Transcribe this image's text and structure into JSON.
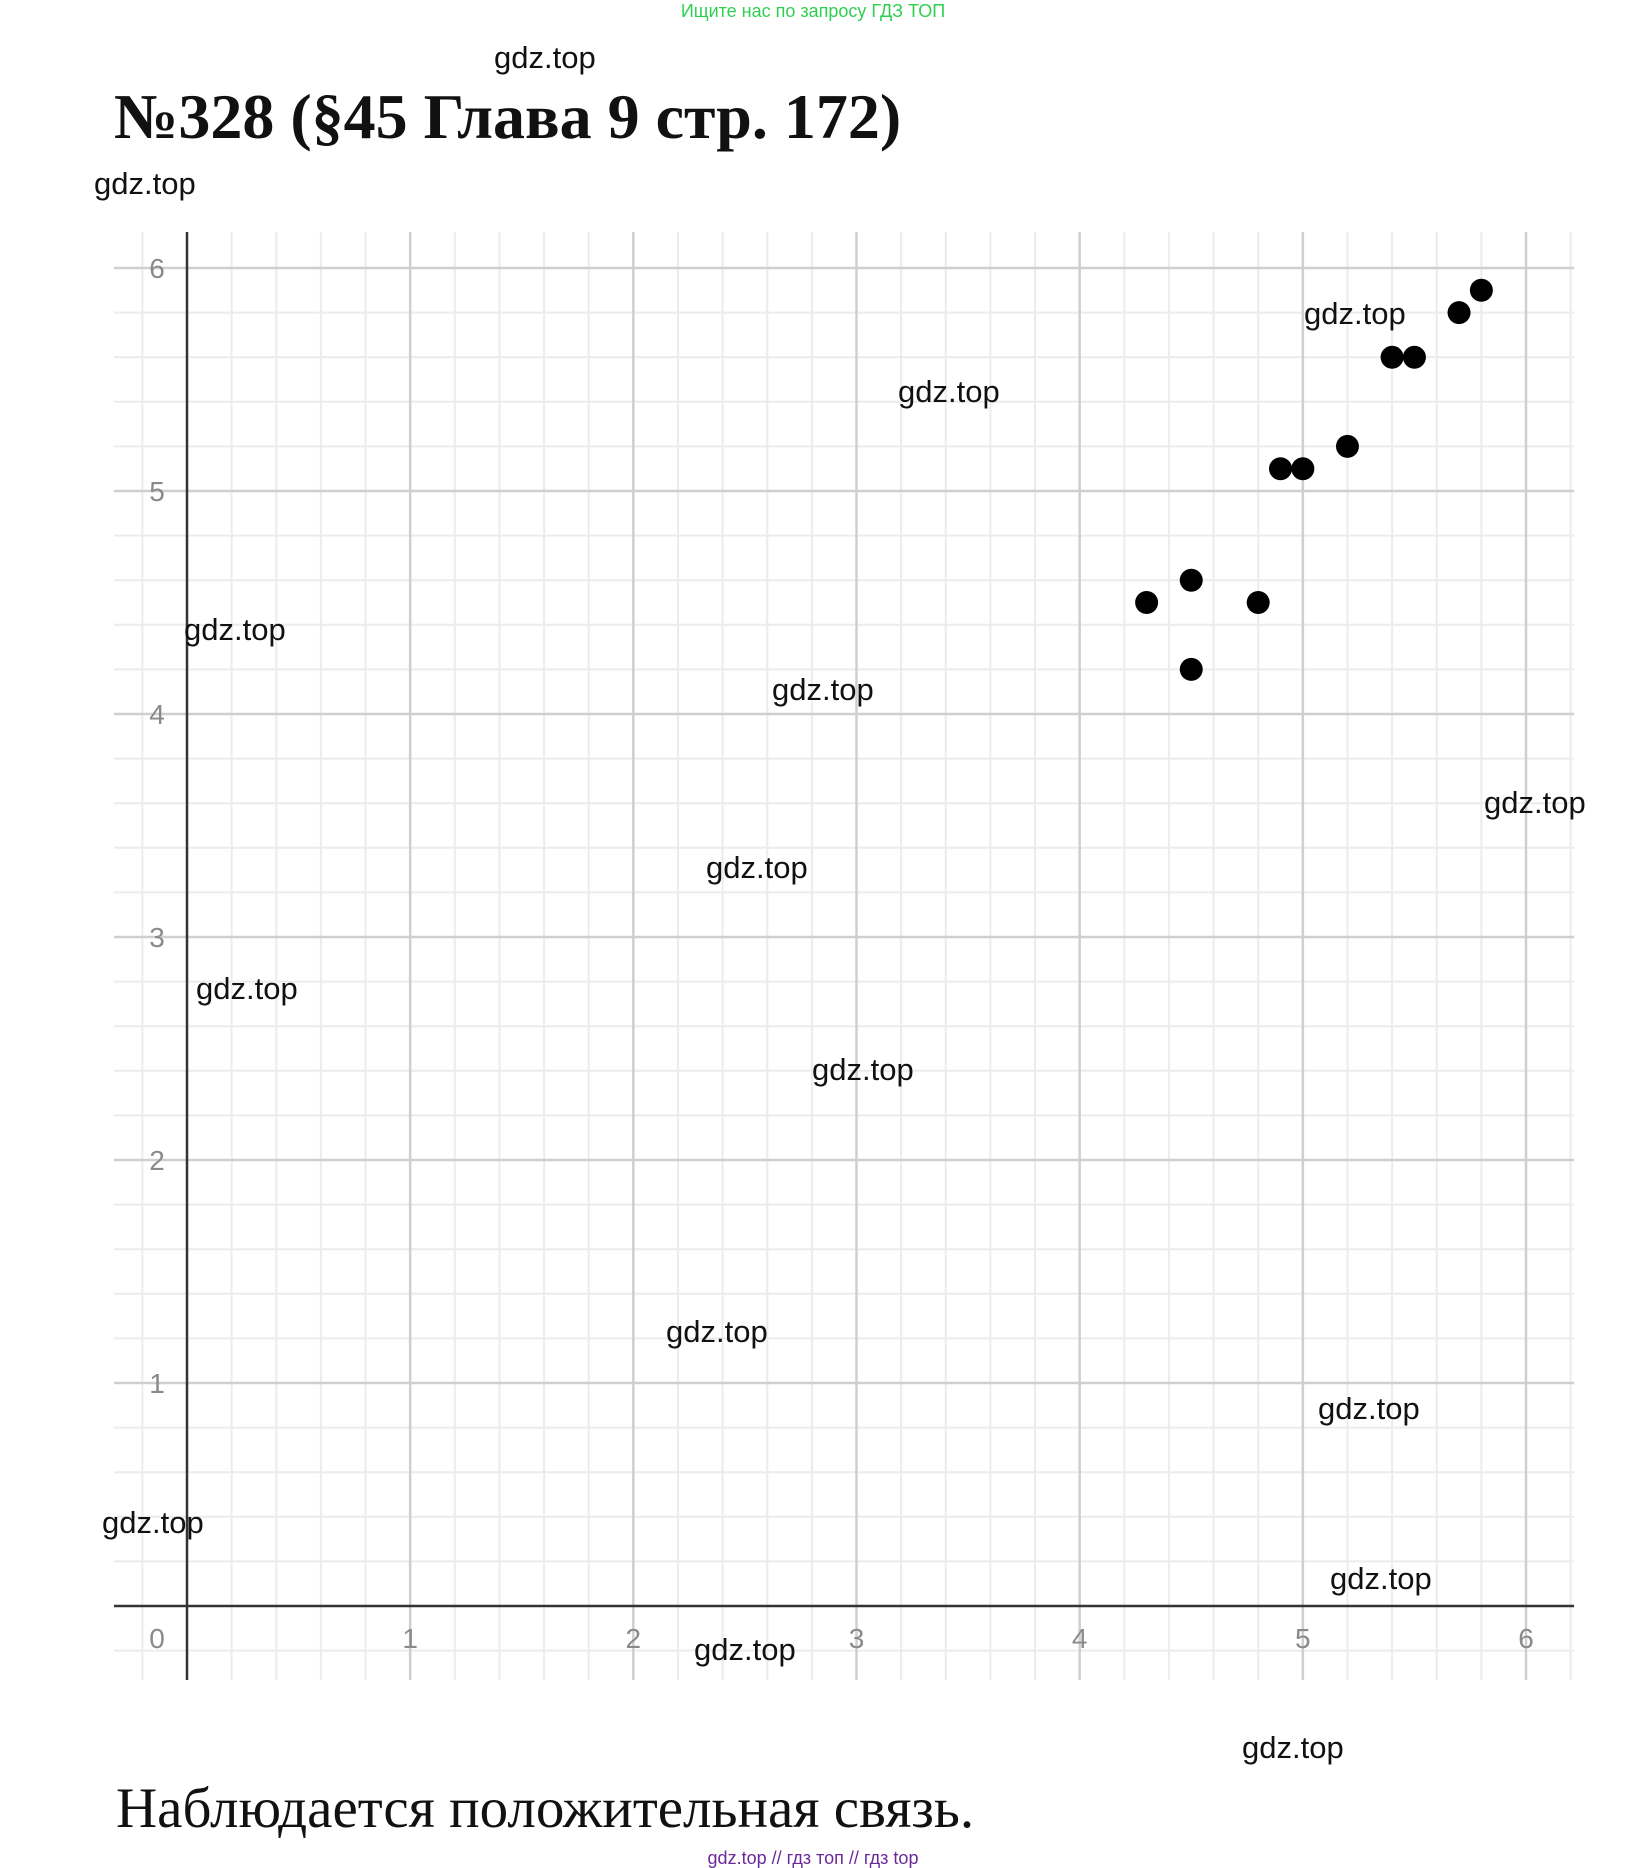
{
  "header": {
    "ad_text": "Ищите нас по запросу ГДЗ ТОП"
  },
  "title": "№328 (§45 Глава 9 стр. 172)",
  "watermark": "gdz.top",
  "chart_data": {
    "type": "scatter",
    "xlim": [
      0,
      6
    ],
    "ylim": [
      0,
      6
    ],
    "xticks": [
      "0",
      "1",
      "2",
      "3",
      "4",
      "5",
      "6"
    ],
    "yticks": [
      "1",
      "2",
      "3",
      "4",
      "5",
      "6"
    ],
    "grid": true,
    "point_color": "#000000",
    "points": [
      {
        "x": 4.3,
        "y": 4.5
      },
      {
        "x": 4.5,
        "y": 4.6
      },
      {
        "x": 4.5,
        "y": 4.2
      },
      {
        "x": 4.8,
        "y": 4.5
      },
      {
        "x": 4.9,
        "y": 5.1
      },
      {
        "x": 5.0,
        "y": 5.1
      },
      {
        "x": 5.2,
        "y": 5.2
      },
      {
        "x": 5.4,
        "y": 5.6
      },
      {
        "x": 5.5,
        "y": 5.6
      },
      {
        "x": 5.7,
        "y": 5.8
      },
      {
        "x": 5.8,
        "y": 5.9
      }
    ]
  },
  "conclusion": "Наблюдается положительная связь.",
  "footer": "gdz.top // гдз топ // гдз top"
}
